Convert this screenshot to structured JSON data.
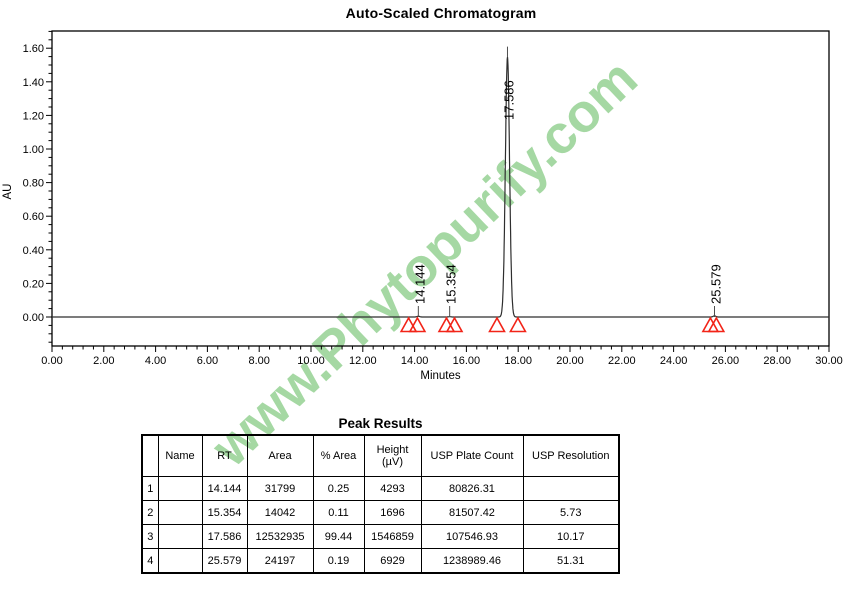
{
  "watermark": {
    "text": "www.Phytopurify.com",
    "color": "#a5d8a3"
  },
  "chart_data": {
    "type": "line",
    "title": "Auto-Scaled Chromatogram",
    "xlabel": "Minutes",
    "ylabel": "AU",
    "xlim": [
      0,
      30
    ],
    "ylim": [
      -0.17,
      1.7
    ],
    "x_major_step": 2,
    "x_minor_step": 0.4,
    "y_major_step": 0.2,
    "y_minor_step": 0.05,
    "y_labeled_range": [
      0.0,
      1.6
    ],
    "grid": "off",
    "legend": "none",
    "baseline_au": 0.0,
    "peaks": [
      {
        "rt": 14.144,
        "label": "14.144",
        "height_au": 0.004293
      },
      {
        "rt": 15.354,
        "label": "15.354",
        "height_au": 0.001696
      },
      {
        "rt": 17.586,
        "label": "17.586",
        "height_au": 1.546859
      },
      {
        "rt": 25.579,
        "label": "25.579",
        "height_au": 0.006929
      }
    ],
    "integration_marks": [
      {
        "start": 13.77,
        "end": 14.11
      },
      {
        "start": 15.23,
        "end": 15.54
      },
      {
        "start": 17.18,
        "end": 17.99
      },
      {
        "start": 25.42,
        "end": 25.65
      }
    ],
    "colors": {
      "trace": "#2e2e2e",
      "axis": "#000000",
      "leader": "#4d4d4d",
      "marker": "#f22418"
    }
  },
  "table": {
    "title": "Peak Results",
    "columns": [
      "",
      "Name",
      "RT",
      "Area",
      "% Area",
      "Height\n(µV)",
      "USP Plate Count",
      "USP Resolution"
    ],
    "rows": [
      [
        "1",
        "",
        "14.144",
        "31799",
        "0.25",
        "4293",
        "80826.31",
        ""
      ],
      [
        "2",
        "",
        "15.354",
        "14042",
        "0.11",
        "1696",
        "81507.42",
        "5.73"
      ],
      [
        "3",
        "",
        "17.586",
        "12532935",
        "99.44",
        "1546859",
        "107546.93",
        "10.17"
      ],
      [
        "4",
        "",
        "25.579",
        "24197",
        "0.19",
        "6929",
        "1238989.46",
        "51.31"
      ]
    ]
  }
}
